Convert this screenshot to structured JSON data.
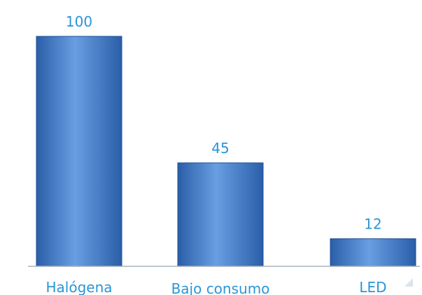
{
  "chart_data": {
    "type": "bar",
    "categories": [
      "Halógena",
      "Bajo consumo",
      "LED"
    ],
    "values": [
      100,
      45,
      12
    ],
    "data_labels": [
      "100",
      "45",
      "12"
    ],
    "title": "",
    "xlabel": "",
    "ylabel": "",
    "ylim": [
      0,
      100
    ],
    "grid": false,
    "legend": "none"
  },
  "colors": {
    "bar_fill_light": "#6a9ee2",
    "bar_fill_dark": "#2a5ea8",
    "bar_border": "#1f4f93",
    "label_color": "#2b95d6",
    "axis_color": "#a9b3bf"
  }
}
